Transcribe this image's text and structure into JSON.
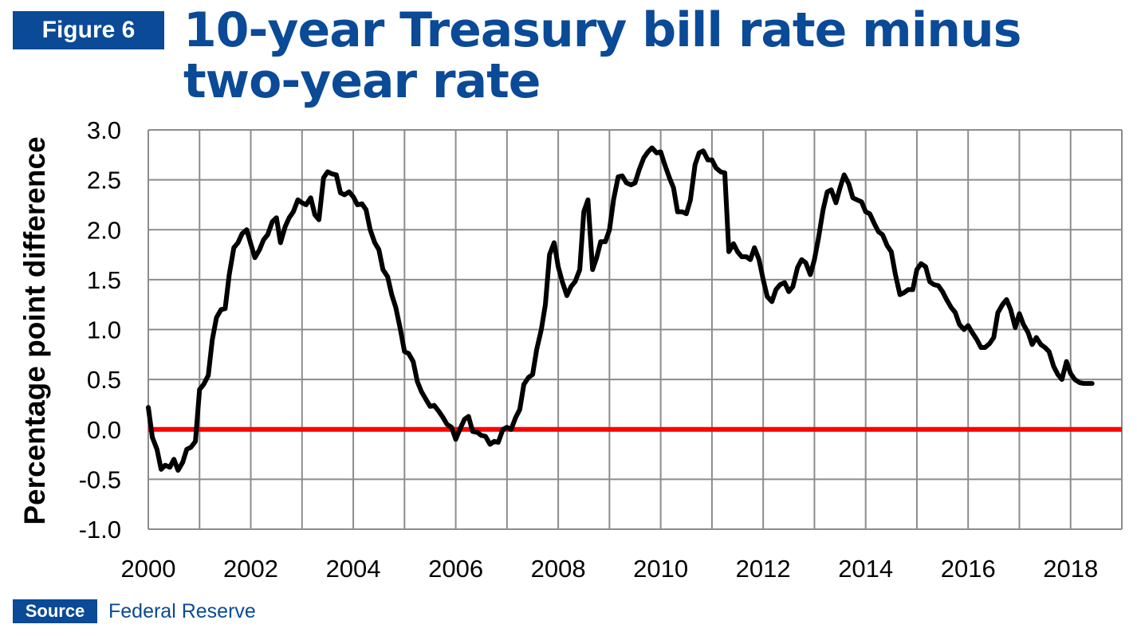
{
  "figure_label": "Figure 6",
  "title": "10-year Treasury bill rate minus two-year rate",
  "source": {
    "label": "Source",
    "text": "Federal Reserve"
  },
  "colors": {
    "brand": "#0a4a97",
    "zero_line": "#ff0000",
    "series": "#000000",
    "grid": "#8c8c8c"
  },
  "chart_data": {
    "type": "line",
    "title": "10-year Treasury bill rate minus two-year rate",
    "xlabel": "",
    "ylabel": "Percentage  point difference",
    "xlim": [
      2000,
      2019
    ],
    "ylim": [
      -1.0,
      3.0
    ],
    "x_ticks": [
      "2000",
      "2002",
      "2004",
      "2006",
      "2008",
      "2010",
      "2012",
      "2014",
      "2016",
      "2018"
    ],
    "y_ticks": [
      "3.0",
      "2.5",
      "2.0",
      "1.5",
      "1.0",
      "0.5",
      "0.0",
      "-0.5",
      "-1.0"
    ],
    "grid": true,
    "reference_line": {
      "y": 0.0,
      "color": "#ff0000"
    },
    "series": [
      {
        "x": [
          2000.0,
          2000.08,
          2000.17,
          2000.25,
          2000.33,
          2000.42,
          2000.5,
          2000.58,
          2000.67,
          2000.75,
          2000.83,
          2000.92,
          2001.0,
          2001.08,
          2001.17,
          2001.25,
          2001.33,
          2001.42,
          2001.5,
          2001.58,
          2001.67,
          2001.75,
          2001.83,
          2001.92,
          2002.0,
          2002.08,
          2002.17,
          2002.25,
          2002.33,
          2002.42,
          2002.5,
          2002.58,
          2002.67,
          2002.75,
          2002.83,
          2002.92,
          2003.0,
          2003.08,
          2003.17,
          2003.25,
          2003.33,
          2003.42,
          2003.5,
          2003.58,
          2003.67,
          2003.75,
          2003.83,
          2003.92,
          2004.0,
          2004.08,
          2004.17,
          2004.25,
          2004.33,
          2004.42,
          2004.5,
          2004.58,
          2004.67,
          2004.75,
          2004.83,
          2004.92,
          2005.0,
          2005.08,
          2005.17,
          2005.25,
          2005.33,
          2005.42,
          2005.5,
          2005.58,
          2005.67,
          2005.75,
          2005.83,
          2005.92,
          2006.0,
          2006.08,
          2006.17,
          2006.25,
          2006.33,
          2006.42,
          2006.5,
          2006.58,
          2006.67,
          2006.75,
          2006.83,
          2006.92,
          2007.0,
          2007.08,
          2007.17,
          2007.25,
          2007.33,
          2007.42,
          2007.5,
          2007.58,
          2007.67,
          2007.75,
          2007.83,
          2007.92,
          2008.0,
          2008.08,
          2008.17,
          2008.25,
          2008.33,
          2008.42,
          2008.5,
          2008.58,
          2008.67,
          2008.75,
          2008.83,
          2008.92,
          2009.0,
          2009.08,
          2009.17,
          2009.25,
          2009.33,
          2009.42,
          2009.5,
          2009.58,
          2009.67,
          2009.75,
          2009.83,
          2009.92,
          2010.0,
          2010.08,
          2010.17,
          2010.25,
          2010.33,
          2010.42,
          2010.5,
          2010.58,
          2010.67,
          2010.75,
          2010.83,
          2010.92,
          2011.0,
          2011.08,
          2011.17,
          2011.25,
          2011.33,
          2011.42,
          2011.5,
          2011.58,
          2011.67,
          2011.75,
          2011.83,
          2011.92,
          2012.0,
          2012.08,
          2012.17,
          2012.25,
          2012.33,
          2012.42,
          2012.5,
          2012.58,
          2012.67,
          2012.75,
          2012.83,
          2012.92,
          2013.0,
          2013.08,
          2013.17,
          2013.25,
          2013.33,
          2013.42,
          2013.5,
          2013.58,
          2013.67,
          2013.75,
          2013.83,
          2013.92,
          2014.0,
          2014.08,
          2014.17,
          2014.25,
          2014.33,
          2014.42,
          2014.5,
          2014.58,
          2014.67,
          2014.75,
          2014.83,
          2014.92,
          2015.0,
          2015.08,
          2015.17,
          2015.25,
          2015.33,
          2015.42,
          2015.5,
          2015.58,
          2015.67,
          2015.75,
          2015.83,
          2015.92,
          2016.0,
          2016.08,
          2016.17,
          2016.25,
          2016.33,
          2016.42,
          2016.5,
          2016.58,
          2016.67,
          2016.75,
          2016.83,
          2016.92,
          2017.0,
          2017.08,
          2017.17,
          2017.25,
          2017.33,
          2017.42,
          2017.5,
          2017.58,
          2017.67,
          2017.75,
          2017.83,
          2017.92,
          2018.0,
          2018.08,
          2018.17,
          2018.25,
          2018.33,
          2018.42
        ],
        "values": [
          0.22,
          -0.08,
          -0.2,
          -0.4,
          -0.36,
          -0.38,
          -0.3,
          -0.41,
          -0.33,
          -0.2,
          -0.18,
          -0.12,
          0.4,
          0.45,
          0.54,
          0.9,
          1.12,
          1.2,
          1.21,
          1.55,
          1.82,
          1.87,
          1.96,
          2.0,
          1.86,
          1.72,
          1.8,
          1.9,
          1.95,
          2.08,
          2.12,
          1.87,
          2.03,
          2.12,
          2.18,
          2.3,
          2.27,
          2.25,
          2.32,
          2.15,
          2.1,
          2.52,
          2.58,
          2.56,
          2.55,
          2.37,
          2.35,
          2.38,
          2.33,
          2.25,
          2.26,
          2.2,
          2.0,
          1.87,
          1.8,
          1.6,
          1.53,
          1.35,
          1.22,
          1.0,
          0.78,
          0.76,
          0.68,
          0.48,
          0.38,
          0.3,
          0.23,
          0.24,
          0.18,
          0.12,
          0.05,
          0.02,
          -0.1,
          0.0,
          0.1,
          0.13,
          -0.02,
          -0.03,
          -0.06,
          -0.07,
          -0.15,
          -0.12,
          -0.13,
          0.0,
          0.02,
          0.0,
          0.12,
          0.2,
          0.45,
          0.52,
          0.55,
          0.8,
          1.0,
          1.25,
          1.75,
          1.87,
          1.63,
          1.48,
          1.34,
          1.43,
          1.48,
          1.6,
          2.18,
          2.3,
          1.6,
          1.72,
          1.88,
          1.88,
          2.0,
          2.3,
          2.53,
          2.54,
          2.47,
          2.45,
          2.47,
          2.6,
          2.72,
          2.78,
          2.82,
          2.77,
          2.78,
          2.65,
          2.52,
          2.42,
          2.18,
          2.18,
          2.16,
          2.3,
          2.65,
          2.77,
          2.79,
          2.7,
          2.7,
          2.62,
          2.58,
          2.57,
          1.78,
          1.86,
          1.78,
          1.73,
          1.73,
          1.7,
          1.82,
          1.7,
          1.5,
          1.33,
          1.28,
          1.4,
          1.45,
          1.47,
          1.38,
          1.43,
          1.62,
          1.7,
          1.67,
          1.55,
          1.7,
          1.92,
          2.2,
          2.38,
          2.4,
          2.27,
          2.42,
          2.55,
          2.46,
          2.32,
          2.3,
          2.28,
          2.18,
          2.16,
          2.06,
          1.98,
          1.95,
          1.84,
          1.78,
          1.55,
          1.35,
          1.37,
          1.4,
          1.4,
          1.6,
          1.66,
          1.63,
          1.48,
          1.45,
          1.44,
          1.38,
          1.3,
          1.22,
          1.17,
          1.05,
          1.0,
          1.04,
          0.97,
          0.9,
          0.82,
          0.82,
          0.86,
          0.92,
          1.17,
          1.25,
          1.3,
          1.2,
          1.02,
          1.16,
          1.05,
          0.97,
          0.85,
          0.92,
          0.85,
          0.82,
          0.78,
          0.63,
          0.55,
          0.5,
          0.68,
          0.56,
          0.5,
          0.47,
          0.46,
          0.46,
          0.46
        ]
      }
    ]
  }
}
